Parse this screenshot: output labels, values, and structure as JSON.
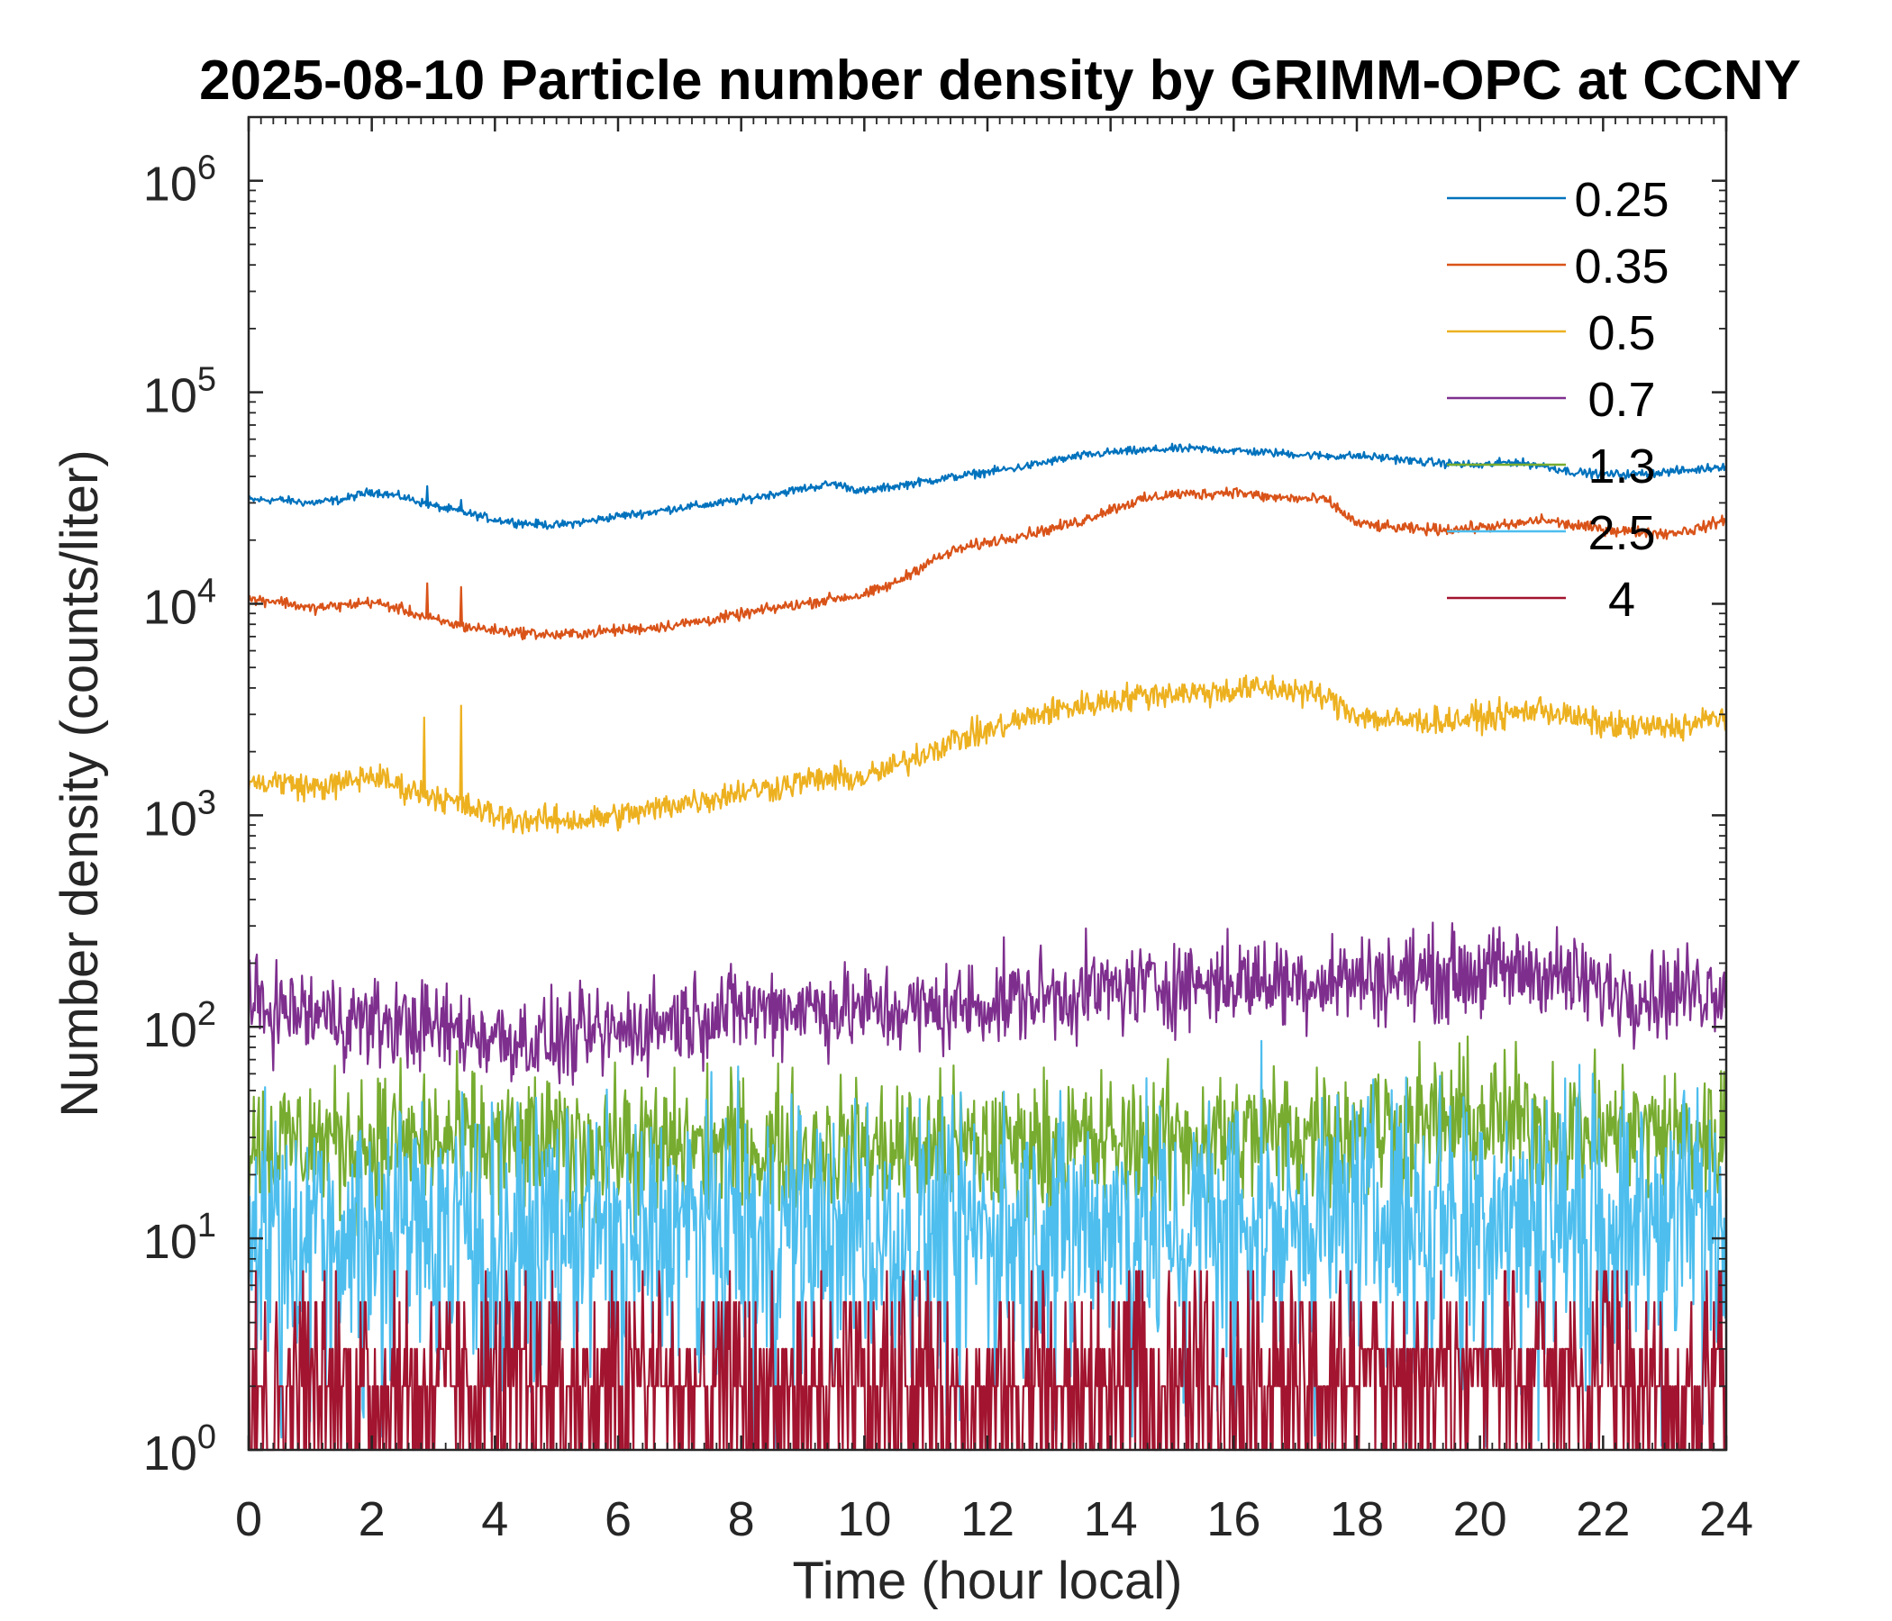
{
  "chart_data": {
    "type": "line",
    "title": "2025-08-10 Particle number density by GRIMM-OPC at CCNY",
    "xlabel": "Time (hour local)",
    "ylabel": "Number density (counts/liter)",
    "xlim": [
      0,
      24
    ],
    "ylim": [
      1,
      2000000
    ],
    "yscale": "log",
    "x_ticks": [
      "0",
      "2",
      "4",
      "6",
      "8",
      "10",
      "12",
      "14",
      "16",
      "18",
      "20",
      "22",
      "24"
    ],
    "y_ticks": [
      {
        "base": "10",
        "exp": "0"
      },
      {
        "base": "10",
        "exp": "1"
      },
      {
        "base": "10",
        "exp": "2"
      },
      {
        "base": "10",
        "exp": "3"
      },
      {
        "base": "10",
        "exp": "4"
      },
      {
        "base": "10",
        "exp": "5"
      },
      {
        "base": "10",
        "exp": "6"
      }
    ],
    "grid": false,
    "legend_position": "top-right",
    "series": [
      {
        "name": "0.25",
        "color": "#0072BD",
        "noise": 0.015,
        "x": [
          0,
          0.5,
          1,
          1.5,
          2,
          2.5,
          3,
          3.5,
          4,
          4.5,
          5,
          5.5,
          6,
          6.5,
          7,
          7.5,
          8,
          8.5,
          9,
          9.5,
          10,
          10.5,
          11,
          11.5,
          12,
          12.5,
          13,
          13.5,
          14,
          14.5,
          15,
          15.5,
          16,
          16.5,
          17,
          17.5,
          18,
          18.5,
          19,
          19.5,
          20,
          20.5,
          21,
          21.5,
          22,
          22.5,
          23,
          23.5,
          24
        ],
        "y": [
          31000,
          31000,
          30000,
          31000,
          34000,
          32000,
          29000,
          27000,
          25000,
          24000,
          23500,
          24500,
          26000,
          27000,
          28500,
          29500,
          31000,
          33000,
          35000,
          37000,
          34000,
          36000,
          38000,
          40000,
          42000,
          44000,
          47000,
          50000,
          52000,
          53000,
          54000,
          54000,
          53000,
          52000,
          51000,
          50000,
          50000,
          49000,
          47000,
          46000,
          45000,
          47000,
          45000,
          42000,
          41000,
          41000,
          42000,
          43000,
          45000
        ],
        "spikes": [
          [
            2.9,
            36000
          ],
          [
            3.45,
            31000
          ]
        ]
      },
      {
        "name": "0.35",
        "color": "#D95319",
        "noise": 0.02,
        "x": [
          0,
          0.5,
          1,
          1.5,
          2,
          2.5,
          3,
          3.5,
          4,
          4.5,
          5,
          5.5,
          6,
          6.5,
          7,
          7.5,
          8,
          8.5,
          9,
          9.5,
          10,
          10.5,
          11,
          11.5,
          12,
          12.5,
          13,
          13.5,
          14,
          14.5,
          15,
          15.5,
          16,
          16.5,
          17,
          17.5,
          18,
          18.5,
          19,
          19.5,
          20,
          20.5,
          21,
          21.5,
          22,
          22.5,
          23,
          23.5,
          24
        ],
        "y": [
          10500,
          10300,
          9500,
          9800,
          10200,
          9400,
          8400,
          7800,
          7500,
          7300,
          7100,
          7300,
          7500,
          7700,
          8000,
          8400,
          8900,
          9500,
          10000,
          10600,
          11000,
          12500,
          15500,
          18000,
          19500,
          21000,
          22500,
          24500,
          28000,
          31000,
          33000,
          33000,
          34000,
          32000,
          31500,
          31000,
          24000,
          23000,
          22500,
          22500,
          23000,
          23500,
          25000,
          23500,
          22500,
          22000,
          21500,
          22500,
          25000
        ],
        "spikes": [
          [
            2.9,
            12500
          ],
          [
            3.45,
            12000
          ]
        ]
      },
      {
        "name": "0.5",
        "color": "#EDB120",
        "noise": 0.05,
        "x": [
          0,
          0.5,
          1,
          1.5,
          2,
          2.5,
          3,
          3.5,
          4,
          4.5,
          5,
          5.5,
          6,
          6.5,
          7,
          7.5,
          8,
          8.5,
          9,
          9.5,
          10,
          10.5,
          11,
          11.5,
          12,
          12.5,
          13,
          13.5,
          14,
          14.5,
          15,
          15.5,
          16,
          16.5,
          17,
          17.5,
          18,
          18.5,
          19,
          19.5,
          20,
          20.5,
          21,
          21.5,
          22,
          22.5,
          23,
          23.5,
          24
        ],
        "y": [
          1400,
          1450,
          1350,
          1400,
          1550,
          1350,
          1250,
          1100,
          1000,
          950,
          950,
          950,
          1000,
          1050,
          1150,
          1200,
          1300,
          1350,
          1450,
          1500,
          1500,
          1700,
          2000,
          2300,
          2500,
          2800,
          3100,
          3300,
          3500,
          3700,
          3800,
          3800,
          3900,
          4000,
          3900,
          3600,
          3000,
          2800,
          2800,
          2800,
          2900,
          3000,
          3200,
          2900,
          2700,
          2600,
          2600,
          2700,
          3000
        ],
        "spikes": [
          [
            2.85,
            2900
          ],
          [
            3.45,
            3300
          ]
        ]
      },
      {
        "name": "0.7",
        "color": "#7E2F8E",
        "noise": 0.16,
        "x": [
          0,
          1,
          2,
          3,
          4,
          5,
          6,
          7,
          8,
          9,
          10,
          11,
          12,
          13,
          14,
          15,
          16,
          17,
          18,
          19,
          20,
          21,
          22,
          23,
          24
        ],
        "y": [
          125,
          115,
          105,
          100,
          90,
          85,
          95,
          110,
          120,
          125,
          120,
          120,
          130,
          140,
          150,
          160,
          165,
          165,
          170,
          175,
          180,
          185,
          150,
          145,
          155
        ],
        "spikes": []
      },
      {
        "name": "1.3",
        "color": "#77AC30",
        "noise": 0.25,
        "x": [
          0,
          2,
          4,
          6,
          8,
          10,
          12,
          14,
          16,
          18,
          20,
          22,
          24
        ],
        "y": [
          28,
          29,
          28,
          27,
          27,
          26,
          27,
          28,
          30,
          33,
          36,
          32,
          30
        ],
        "spikes": []
      },
      {
        "name": "2.5",
        "color": "#4DBEEE",
        "noise": 0.45,
        "x": [
          0,
          2,
          4,
          6,
          8,
          10,
          12,
          14,
          16,
          18,
          20,
          22,
          24
        ],
        "y": [
          12,
          12,
          11,
          11,
          11,
          11,
          11,
          12,
          12,
          13,
          15,
          13,
          12
        ],
        "spikes": []
      },
      {
        "name": "4",
        "color": "#A2142F",
        "noise": 0,
        "x": [
          0,
          24
        ],
        "y": [
          2,
          2
        ],
        "spikes": []
      }
    ]
  }
}
